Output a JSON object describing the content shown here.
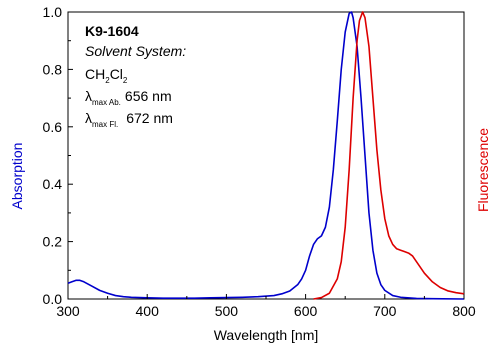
{
  "chart_data": {
    "type": "line",
    "xlabel": "Wavelength [nm]",
    "ylabel_left": "Absorption",
    "ylabel_right": "Fluorescence",
    "xlim": [
      300,
      800
    ],
    "ylim": [
      0,
      1.0
    ],
    "xticks": [
      "300",
      "400",
      "500",
      "600",
      "700",
      "800"
    ],
    "yticks": [
      "0.0",
      "0.2",
      "0.4",
      "0.6",
      "0.8",
      "1.0"
    ],
    "grid": false,
    "annotations": {
      "compound": "K9-1604",
      "solvent_label": "Solvent System:",
      "solvent_main": "CH",
      "solvent_sub1": "2",
      "solvent_mid": "Cl",
      "solvent_sub2": "2",
      "lambda_symbol": "λ",
      "abs_sub": "max Ab.",
      "abs_value": "656 nm",
      "fl_sub": "max Fl.",
      "fl_value": "672 nm"
    },
    "series": [
      {
        "name": "Absorption",
        "color": "#0000cc",
        "x": [
          300,
          305,
          310,
          315,
          320,
          330,
          340,
          350,
          360,
          370,
          380,
          390,
          400,
          420,
          440,
          460,
          480,
          500,
          520,
          540,
          560,
          570,
          580,
          590,
          595,
          600,
          605,
          610,
          615,
          620,
          625,
          630,
          635,
          640,
          645,
          650,
          655,
          658,
          660,
          665,
          670,
          675,
          680,
          685,
          690,
          695,
          700,
          710,
          720,
          740,
          760,
          800
        ],
        "y": [
          0.055,
          0.06,
          0.065,
          0.065,
          0.06,
          0.045,
          0.03,
          0.02,
          0.012,
          0.008,
          0.006,
          0.005,
          0.004,
          0.003,
          0.003,
          0.003,
          0.004,
          0.005,
          0.006,
          0.008,
          0.012,
          0.018,
          0.028,
          0.05,
          0.07,
          0.1,
          0.15,
          0.19,
          0.21,
          0.22,
          0.25,
          0.32,
          0.45,
          0.62,
          0.8,
          0.93,
          0.995,
          1.0,
          0.98,
          0.88,
          0.7,
          0.5,
          0.3,
          0.17,
          0.09,
          0.05,
          0.03,
          0.012,
          0.006,
          0.002,
          0.001,
          0.0
        ]
      },
      {
        "name": "Fluorescence",
        "color": "#dd0000",
        "x": [
          610,
          620,
          630,
          640,
          645,
          650,
          655,
          660,
          665,
          668,
          672,
          675,
          680,
          685,
          690,
          695,
          700,
          705,
          710,
          715,
          720,
          725,
          730,
          735,
          740,
          745,
          750,
          760,
          770,
          780,
          790,
          800
        ],
        "y": [
          0.0,
          0.005,
          0.02,
          0.07,
          0.13,
          0.25,
          0.45,
          0.7,
          0.9,
          0.97,
          1.0,
          0.98,
          0.88,
          0.7,
          0.52,
          0.38,
          0.28,
          0.22,
          0.19,
          0.175,
          0.17,
          0.165,
          0.16,
          0.15,
          0.13,
          0.11,
          0.09,
          0.06,
          0.04,
          0.028,
          0.022,
          0.018
        ]
      }
    ]
  }
}
